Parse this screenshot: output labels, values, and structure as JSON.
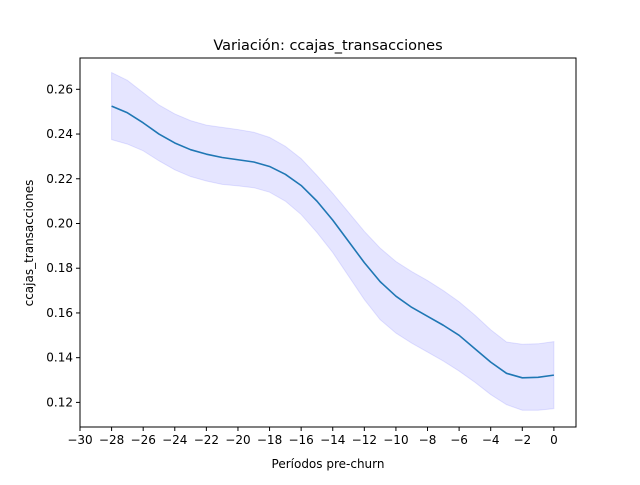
{
  "chart_data": {
    "type": "line",
    "title": "Variación: ccajas_transacciones",
    "xlabel": "Períodos pre-churn",
    "ylabel": "ccajas_transacciones",
    "xlim": [
      -30,
      1.4
    ],
    "ylim": [
      0.109,
      0.274
    ],
    "xticks": [
      -30,
      -28,
      -26,
      -24,
      -22,
      -20,
      -18,
      -16,
      -14,
      -12,
      -10,
      -8,
      -6,
      -4,
      -2,
      0
    ],
    "xtick_labels": [
      "−30",
      "−28",
      "−26",
      "−24",
      "−22",
      "−20",
      "−18",
      "−16",
      "−14",
      "−12",
      "−10",
      "−8",
      "−6",
      "−4",
      "−2",
      "0"
    ],
    "yticks": [
      0.12,
      0.14,
      0.16,
      0.18,
      0.2,
      0.22,
      0.24,
      0.26
    ],
    "ytick_labels": [
      "0.12",
      "0.14",
      "0.16",
      "0.18",
      "0.20",
      "0.22",
      "0.24",
      "0.26"
    ],
    "grid": false,
    "colors": {
      "line": "#1f77b4",
      "band": "#0000ff"
    },
    "x": [
      -28,
      -27,
      -26,
      -25,
      -24,
      -23,
      -22,
      -21,
      -20,
      -19,
      -18,
      -17,
      -16,
      -15,
      -14,
      -13,
      -12,
      -11,
      -10,
      -9,
      -8,
      -7,
      -6,
      -5,
      -4,
      -3,
      -2,
      -1,
      0
    ],
    "series": [
      {
        "values": [
          0.2525,
          0.2495,
          0.245,
          0.24,
          0.236,
          0.233,
          0.231,
          0.2295,
          0.2285,
          0.2275,
          0.2255,
          0.222,
          0.217,
          0.21,
          0.2015,
          0.192,
          0.1825,
          0.174,
          0.1675,
          0.1625,
          0.1585,
          0.1545,
          0.15,
          0.144,
          0.138,
          0.133,
          0.131,
          0.1312,
          0.1322
        ],
        "lower": [
          0.2375,
          0.2355,
          0.2325,
          0.228,
          0.224,
          0.221,
          0.219,
          0.2175,
          0.2168,
          0.216,
          0.214,
          0.21,
          0.204,
          0.196,
          0.187,
          0.1765,
          0.166,
          0.157,
          0.151,
          0.1465,
          0.1425,
          0.1385,
          0.134,
          0.129,
          0.1235,
          0.119,
          0.1165,
          0.1165,
          0.1172
        ],
        "upper": [
          0.2675,
          0.264,
          0.2585,
          0.253,
          0.249,
          0.246,
          0.244,
          0.243,
          0.242,
          0.2408,
          0.2385,
          0.2345,
          0.229,
          0.2215,
          0.2135,
          0.205,
          0.1965,
          0.189,
          0.183,
          0.1785,
          0.1745,
          0.17,
          0.165,
          0.159,
          0.1525,
          0.147,
          0.146,
          0.1462,
          0.1472
        ]
      }
    ]
  }
}
